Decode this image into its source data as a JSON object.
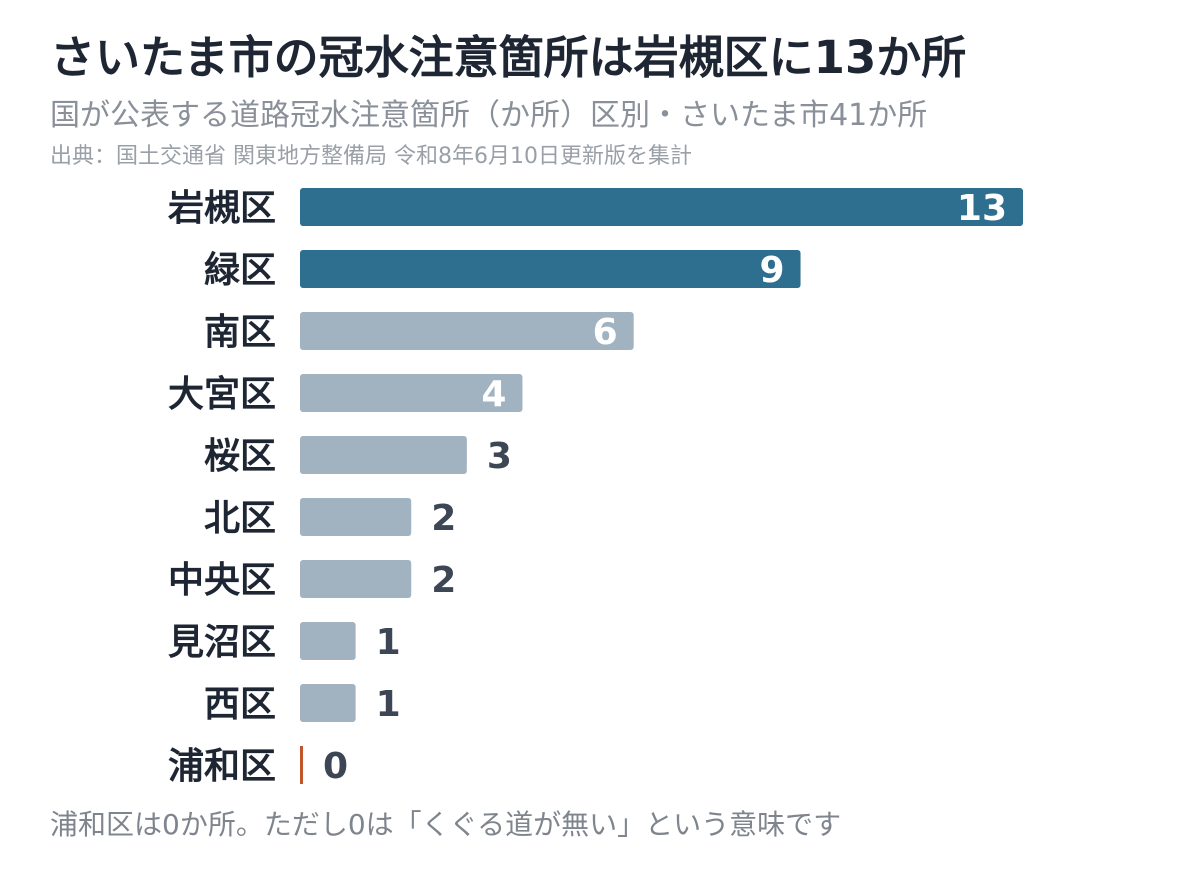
{
  "header": {
    "title": "さいたま市の冠水注意箇所は岩槻区に13か所",
    "subtitle": "国が公表する道路冠水注意箇所（か所）区別・さいたま市41か所",
    "source": "出典：国土交通省 関東地方整備局 令和8年6月10日更新版を集計"
  },
  "footer": {
    "note": "浦和区は0か所。ただし0は「くぐる道が無い」という意味です"
  },
  "colors": {
    "highlight": "#2e6e8e",
    "default": "#a1b3c1",
    "zero": "#c0562b",
    "label_inside": "#ffffff",
    "label_outside": "#3d4654"
  },
  "chart_data": {
    "type": "bar",
    "orientation": "horizontal",
    "categories": [
      "岩槻区",
      "緑区",
      "南区",
      "大宮区",
      "桜区",
      "北区",
      "中央区",
      "見沼区",
      "西区",
      "浦和区"
    ],
    "values": [
      13,
      9,
      6,
      4,
      3,
      2,
      2,
      1,
      1,
      0
    ],
    "highlighted": [
      "岩槻区",
      "緑区"
    ],
    "title": "さいたま市の冠水注意箇所は岩槻区に13か所",
    "xlabel": "",
    "ylabel": "",
    "xlim": [
      0,
      13
    ],
    "grid": false,
    "legend": "none"
  }
}
